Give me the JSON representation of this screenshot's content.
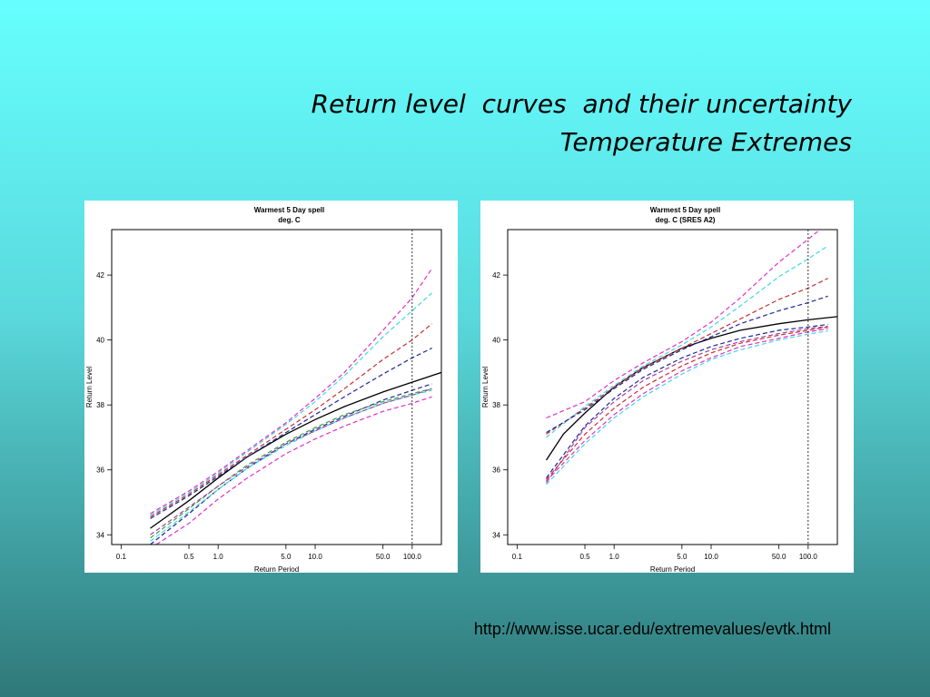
{
  "slide": {
    "title_line1": "Return level  curves  and their uncertainty",
    "title_line2": "Temperature Extremes",
    "source_url": "http://www.isse.ucar.edu/extremevalues/evtk.html"
  },
  "colors": {
    "background_top": "#66ffff",
    "background_bottom": "#2f7879",
    "central_estimate": "#000000",
    "magenta": "#e030c8",
    "cyan": "#40d8e0",
    "red": "#c83030",
    "navy": "#202898",
    "green": "#40a040",
    "plum": "#a040a0"
  },
  "chart_data": [
    {
      "type": "line",
      "title": "Warmest 5 Day spell",
      "subtitle": "deg. C",
      "xlabel": "Return Period",
      "ylabel": "Return Level",
      "xscale": "log",
      "xlim": [
        0.08,
        200
      ],
      "ylim": [
        33.7,
        43.4
      ],
      "xticks": [
        0.1,
        0.5,
        1.0,
        5.0,
        10.0,
        50.0,
        100.0
      ],
      "xtick_labels": [
        "0.1",
        "0.5",
        "1.0",
        "5.0",
        "10.0",
        "50.0",
        "100.0"
      ],
      "yticks": [
        34,
        36,
        38,
        40,
        42
      ],
      "ytick_labels": [
        "34",
        "36",
        "38",
        "40",
        "42"
      ],
      "reference_line_x": 100,
      "series": [
        {
          "color": "#000000",
          "style": "solid",
          "x": [
            0.2,
            0.5,
            1,
            2,
            5,
            10,
            20,
            50,
            100,
            200
          ],
          "y": [
            34.2,
            35.05,
            35.75,
            36.4,
            37.1,
            37.55,
            37.95,
            38.4,
            38.7,
            39.0
          ]
        },
        {
          "color": "#e030c8",
          "style": "dashed",
          "x": [
            0.2,
            0.5,
            1,
            2,
            5,
            10,
            20,
            50,
            100,
            160
          ],
          "y": [
            34.65,
            35.35,
            35.95,
            36.6,
            37.45,
            38.2,
            39.0,
            40.3,
            41.3,
            42.2
          ]
        },
        {
          "color": "#40d8e0",
          "style": "dashed",
          "x": [
            0.2,
            0.5,
            1,
            2,
            5,
            10,
            20,
            50,
            100,
            160
          ],
          "y": [
            34.6,
            35.3,
            35.9,
            36.55,
            37.4,
            38.1,
            38.9,
            40.1,
            40.9,
            41.45
          ]
        },
        {
          "color": "#c83030",
          "style": "dashed",
          "x": [
            0.2,
            0.5,
            1,
            2,
            5,
            10,
            20,
            50,
            100,
            160
          ],
          "y": [
            34.55,
            35.25,
            35.85,
            36.45,
            37.25,
            37.85,
            38.5,
            39.4,
            40.0,
            40.5
          ]
        },
        {
          "color": "#202898",
          "style": "dashed",
          "x": [
            0.2,
            0.5,
            1,
            2,
            5,
            10,
            20,
            50,
            100,
            160
          ],
          "y": [
            34.5,
            35.2,
            35.8,
            36.4,
            37.15,
            37.7,
            38.25,
            38.95,
            39.45,
            39.75
          ]
        },
        {
          "color": "#202898",
          "style": "dashed",
          "x": [
            0.2,
            0.5,
            1,
            2,
            5,
            10,
            20,
            50,
            100,
            160
          ],
          "y": [
            33.7,
            34.65,
            35.4,
            36.05,
            36.8,
            37.25,
            37.65,
            38.15,
            38.45,
            38.65
          ]
        },
        {
          "color": "#40a040",
          "style": "dashed",
          "x": [
            0.2,
            0.5,
            1,
            2,
            5,
            10,
            20,
            50,
            100,
            160
          ],
          "y": [
            33.9,
            34.8,
            35.5,
            36.15,
            36.85,
            37.3,
            37.7,
            38.1,
            38.35,
            38.5
          ]
        },
        {
          "color": "#40d8e0",
          "style": "dashed",
          "x": [
            0.2,
            0.5,
            1,
            2,
            5,
            10,
            20,
            50,
            100,
            160
          ],
          "y": [
            33.8,
            34.7,
            35.4,
            36.05,
            36.75,
            37.2,
            37.6,
            38.05,
            38.3,
            38.45
          ]
        },
        {
          "color": "#a040a0",
          "style": "dashed",
          "x": [
            0.2,
            0.5,
            1,
            2,
            5,
            10,
            20,
            50,
            100,
            160
          ],
          "y": [
            34.0,
            34.85,
            35.5,
            36.1,
            36.8,
            37.2,
            37.6,
            38.05,
            38.3,
            38.5
          ]
        },
        {
          "color": "#e030c8",
          "style": "dashed",
          "x": [
            0.23,
            0.5,
            1,
            2,
            5,
            10,
            20,
            50,
            100,
            160
          ],
          "y": [
            33.7,
            34.35,
            35.1,
            35.75,
            36.5,
            36.95,
            37.35,
            37.8,
            38.05,
            38.25
          ]
        }
      ]
    },
    {
      "type": "line",
      "title": "Warmest 5 Day spell",
      "subtitle": "deg. C (SRES A2)",
      "xlabel": "Return Period",
      "ylabel": "Return Level",
      "xscale": "log",
      "xlim": [
        0.08,
        200
      ],
      "ylim": [
        33.7,
        43.4
      ],
      "xticks": [
        0.1,
        0.5,
        1.0,
        5.0,
        10.0,
        50.0,
        100.0
      ],
      "xtick_labels": [
        "0.1",
        "0.5",
        "1.0",
        "5.0",
        "10.0",
        "50.0",
        "100.0"
      ],
      "yticks": [
        34,
        36,
        38,
        40,
        42
      ],
      "ytick_labels": [
        "34",
        "36",
        "38",
        "40",
        "42"
      ],
      "reference_line_x": 100,
      "series": [
        {
          "color": "#000000",
          "style": "solid",
          "x": [
            0.2,
            0.3,
            0.5,
            1,
            2,
            5,
            10,
            20,
            50,
            100,
            200
          ],
          "y": [
            36.3,
            37.1,
            37.75,
            38.55,
            39.15,
            39.75,
            40.05,
            40.3,
            40.5,
            40.62,
            40.72
          ]
        },
        {
          "color": "#e030c8",
          "style": "dashed",
          "x": [
            0.2,
            0.5,
            1,
            2,
            5,
            10,
            20,
            50,
            100,
            145
          ],
          "y": [
            37.6,
            38.1,
            38.75,
            39.3,
            39.95,
            40.55,
            41.3,
            42.4,
            43.1,
            43.5
          ]
        },
        {
          "color": "#40d8e0",
          "style": "dashed",
          "x": [
            0.2,
            0.5,
            1,
            2,
            5,
            10,
            20,
            50,
            100,
            160
          ],
          "y": [
            37.0,
            37.95,
            38.6,
            39.2,
            39.85,
            40.4,
            41.05,
            41.95,
            42.5,
            42.9
          ]
        },
        {
          "color": "#c83030",
          "style": "dashed",
          "x": [
            0.2,
            0.5,
            1,
            2,
            5,
            10,
            20,
            50,
            100,
            160
          ],
          "y": [
            37.1,
            37.9,
            38.55,
            39.15,
            39.75,
            40.2,
            40.65,
            41.25,
            41.6,
            41.9
          ]
        },
        {
          "color": "#202898",
          "style": "dashed",
          "x": [
            0.2,
            0.5,
            1,
            2,
            5,
            10,
            20,
            50,
            100,
            160
          ],
          "y": [
            37.15,
            37.85,
            38.5,
            39.1,
            39.7,
            40.1,
            40.5,
            40.9,
            41.15,
            41.35
          ]
        },
        {
          "color": "#202898",
          "style": "dashed",
          "x": [
            0.2,
            0.5,
            1,
            2,
            5,
            10,
            20,
            50,
            100,
            160
          ],
          "y": [
            35.75,
            37.35,
            38.2,
            38.85,
            39.45,
            39.8,
            40.05,
            40.3,
            40.4,
            40.48
          ]
        },
        {
          "color": "#a040a0",
          "style": "dashed",
          "x": [
            0.2,
            0.5,
            1,
            2,
            5,
            10,
            20,
            50,
            100,
            160
          ],
          "y": [
            35.6,
            37.3,
            38.1,
            38.75,
            39.35,
            39.7,
            39.95,
            40.2,
            40.35,
            40.42
          ]
        },
        {
          "color": "#c83030",
          "style": "dashed",
          "x": [
            0.2,
            0.5,
            1,
            2,
            5,
            10,
            20,
            50,
            100,
            160
          ],
          "y": [
            35.7,
            37.1,
            37.9,
            38.55,
            39.2,
            39.6,
            39.9,
            40.15,
            40.3,
            40.4
          ]
        },
        {
          "color": "#e030c8",
          "style": "dashed",
          "x": [
            0.2,
            0.5,
            1,
            2,
            5,
            10,
            20,
            50,
            100,
            160
          ],
          "y": [
            35.65,
            36.9,
            37.7,
            38.35,
            39.05,
            39.45,
            39.8,
            40.05,
            40.25,
            40.35
          ]
        },
        {
          "color": "#40d8e0",
          "style": "dashed",
          "x": [
            0.2,
            0.5,
            1,
            2,
            5,
            10,
            20,
            50,
            100,
            160
          ],
          "y": [
            35.55,
            36.8,
            37.6,
            38.25,
            38.95,
            39.4,
            39.7,
            40.0,
            40.18,
            40.28
          ]
        }
      ]
    }
  ]
}
